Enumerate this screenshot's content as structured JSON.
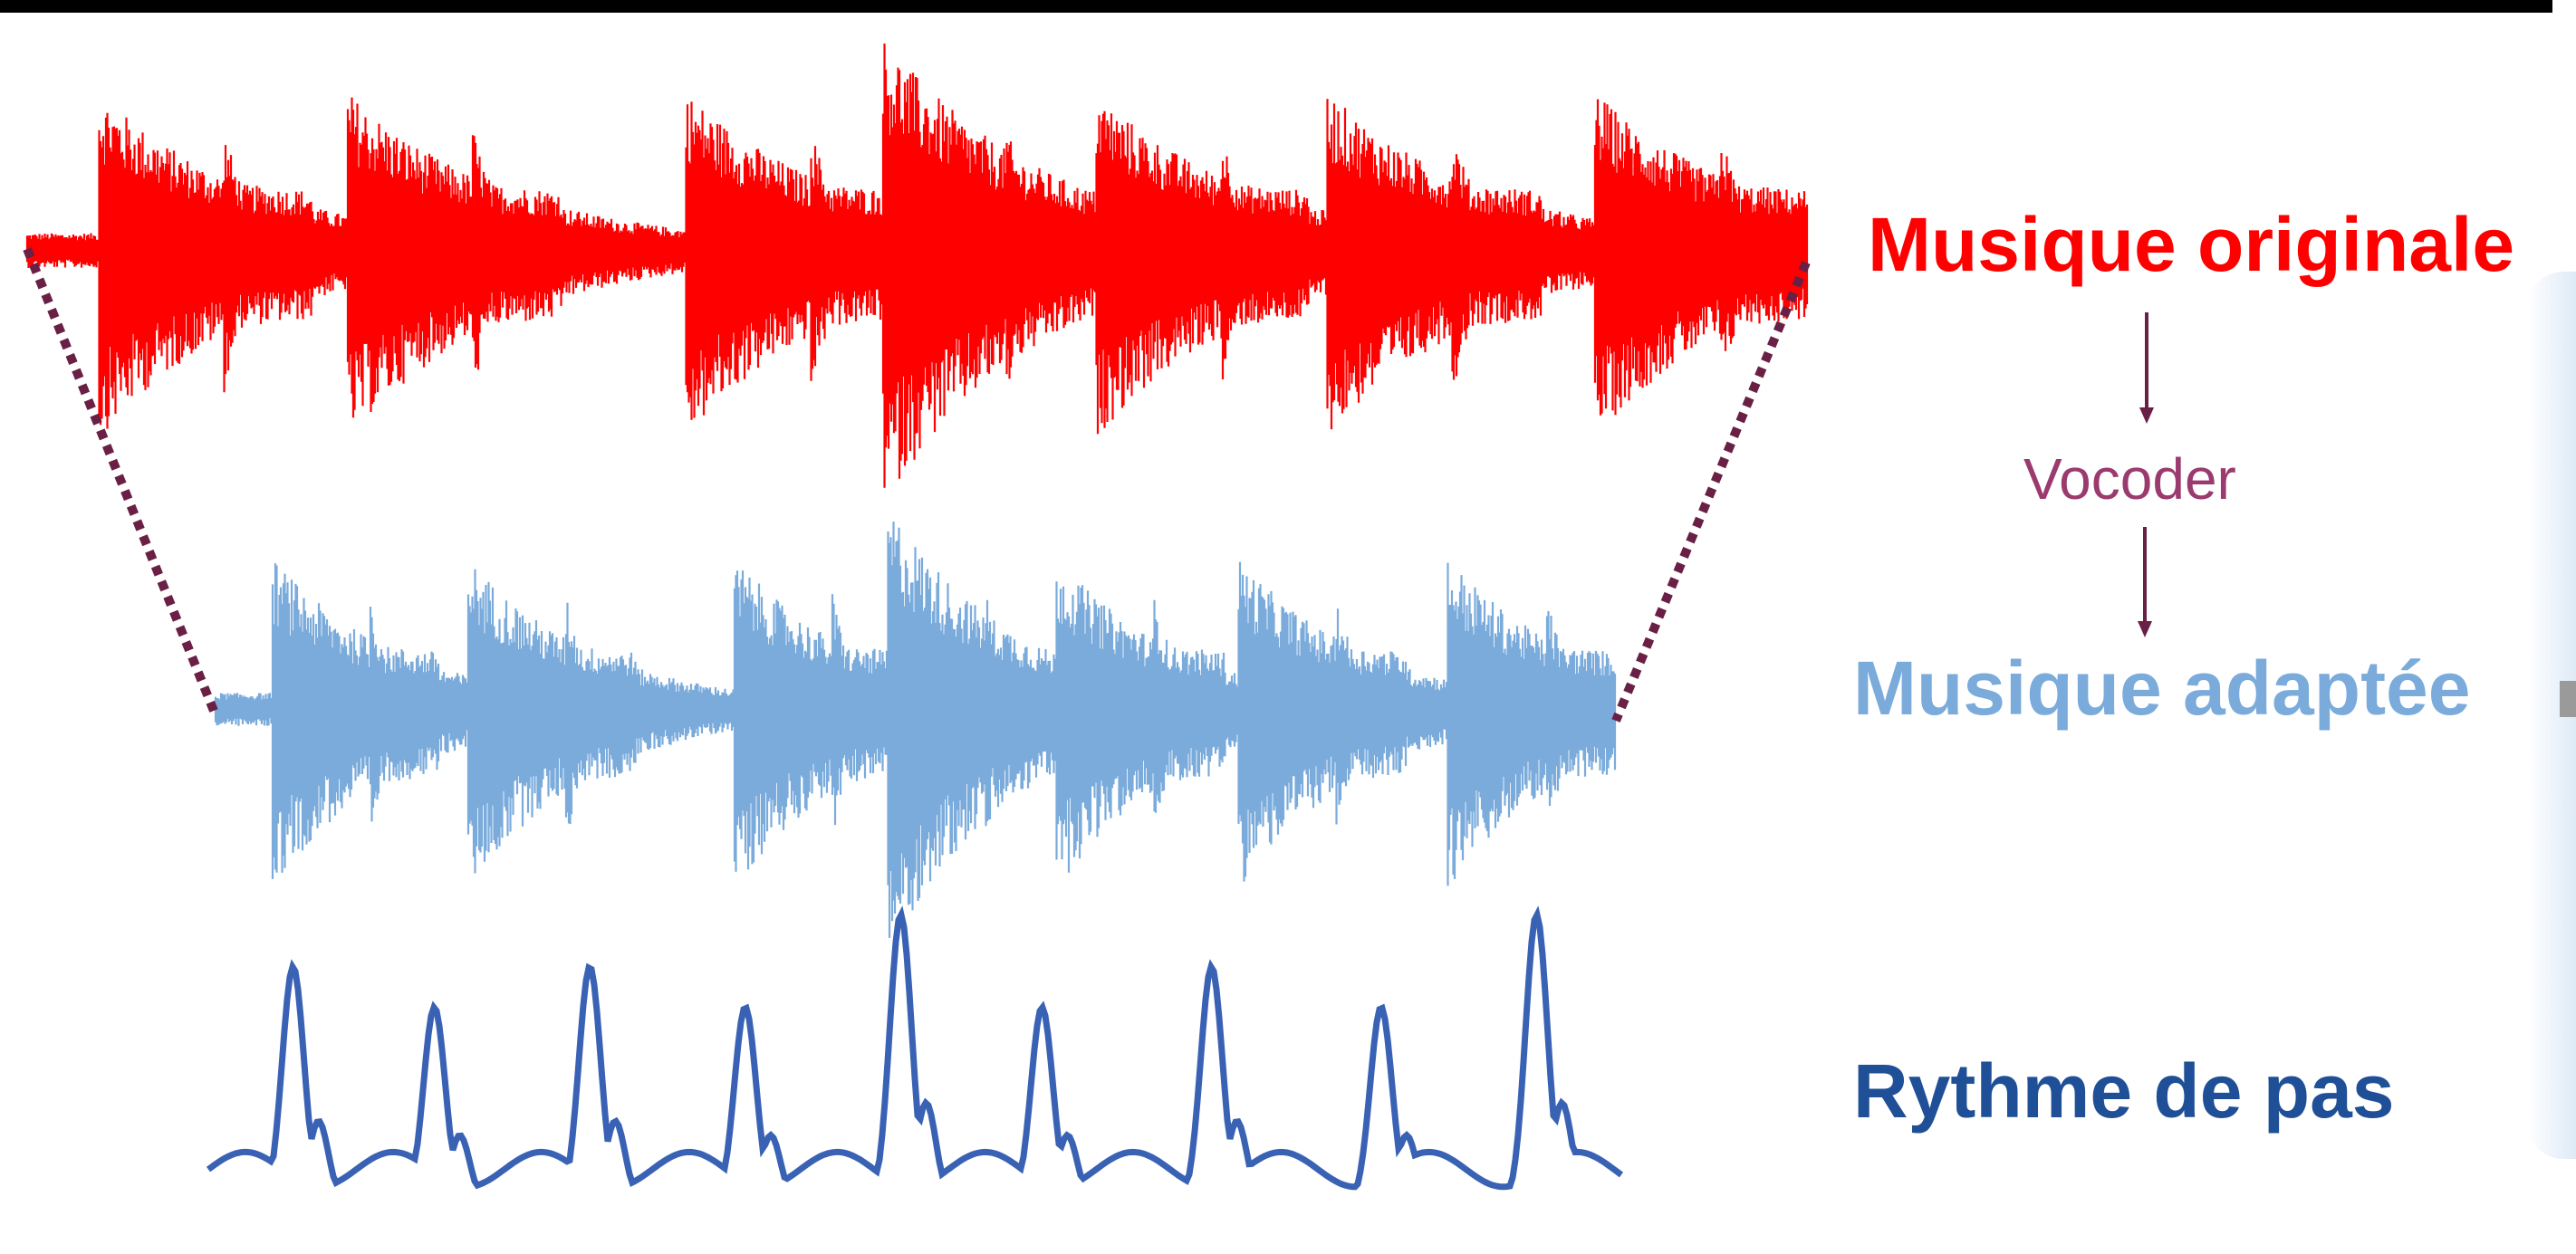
{
  "labels": {
    "original": "Musique originale",
    "vocoder": "Vocoder",
    "adapted": "Musique adaptée",
    "rhythm": "Rythme de pas"
  },
  "colors": {
    "original_wave": "#ff0000",
    "adapted_wave": "#7aabdb",
    "rhythm_line": "#3a62b4",
    "vocoder_text": "#9b3a6e",
    "arrow": "#6a1f45",
    "rhythm_text": "#1f4f96",
    "dotted_connector": "#6a1f45"
  },
  "waveform_onsets": [
    0.04,
    0.18,
    0.37,
    0.48,
    0.6,
    0.73,
    0.88
  ],
  "rhythm_peaks": [
    0.06,
    0.16,
    0.27,
    0.38,
    0.49,
    0.59,
    0.71,
    0.83,
    0.94
  ]
}
